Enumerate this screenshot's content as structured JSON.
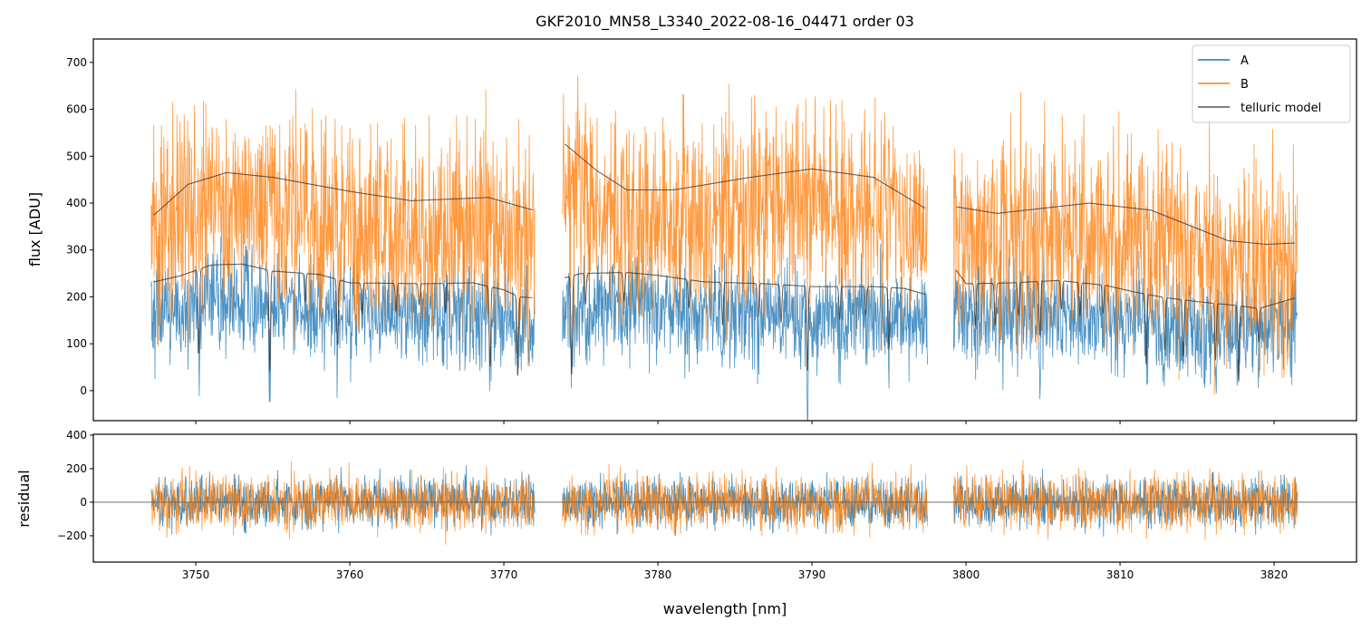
{
  "chart_data": [
    {
      "type": "line",
      "title": "GKF2010_MN58_L3340_2022-08-16_04471  order 03",
      "xlabel": "",
      "ylabel": "flux [ADU]",
      "xlim": [
        3743.35,
        3825.35
      ],
      "ylim": [
        -64,
        750
      ],
      "yticks": [
        0,
        100,
        200,
        300,
        400,
        500,
        600,
        700
      ],
      "xticks": [
        3750,
        3760,
        3770,
        3780,
        3790,
        3800,
        3810,
        3820
      ],
      "legend": {
        "placement": "top-right",
        "entries": [
          "A",
          "B",
          "telluric model"
        ]
      },
      "segments": [
        [
          3747.1,
          3772.0
        ],
        [
          3773.8,
          3797.5
        ],
        [
          3799.2,
          3821.5
        ]
      ],
      "series": [
        {
          "name": "A",
          "color": "#1f77b4",
          "description_level": "noisy spectrum, ~50-300 ADU"
        },
        {
          "name": "B",
          "color": "#ff7f0e",
          "description_level": "noisy spectrum, ~200-750 ADU"
        },
        {
          "name": "telluric model",
          "color": "#333333",
          "upper_curve": [
            [
              [
                3747.3,
                375
              ],
              [
                3749.5,
                440
              ],
              [
                3752,
                465
              ],
              [
                3755,
                455
              ],
              [
                3760,
                425
              ],
              [
                3764,
                405
              ],
              [
                3769,
                412
              ],
              [
                3771.9,
                385
              ]
            ],
            [
              [
                3774,
                525
              ],
              [
                3776,
                470
              ],
              [
                3778,
                428
              ],
              [
                3781,
                428
              ],
              [
                3786,
                455
              ],
              [
                3790,
                473
              ],
              [
                3794,
                455
              ],
              [
                3797.4,
                388
              ]
            ],
            [
              [
                3799.4,
                392
              ],
              [
                3802,
                378
              ],
              [
                3808,
                400
              ],
              [
                3812,
                385
              ],
              [
                3817,
                320
              ],
              [
                3819.5,
                312
              ],
              [
                3821.4,
                315
              ]
            ]
          ],
          "lower_curve": [
            [
              [
                3747.3,
                232
              ],
              [
                3749,
                245
              ],
              [
                3751,
                268
              ],
              [
                3753,
                270
              ],
              [
                3755,
                255
              ],
              [
                3758,
                248
              ],
              [
                3760,
                230
              ],
              [
                3765,
                228
              ],
              [
                3768,
                230
              ],
              [
                3770,
                215
              ],
              [
                3771,
                200
              ],
              [
                3771.9,
                198
              ]
            ],
            [
              [
                3773.9,
                240
              ],
              [
                3775,
                250
              ],
              [
                3778,
                252
              ],
              [
                3780,
                246
              ],
              [
                3783,
                232
              ],
              [
                3787,
                228
              ],
              [
                3790,
                222
              ],
              [
                3794,
                222
              ],
              [
                3796,
                218
              ],
              [
                3797.4,
                205
              ]
            ],
            [
              [
                3799.3,
                260
              ],
              [
                3800,
                228
              ],
              [
                3803,
                230
              ],
              [
                3806,
                235
              ],
              [
                3809,
                225
              ],
              [
                3811,
                210
              ],
              [
                3813,
                198
              ],
              [
                3815,
                190
              ],
              [
                3818,
                180
              ],
              [
                3819,
                175
              ],
              [
                3821.4,
                198
              ]
            ]
          ],
          "absorption_lines": [
            [
              3750.2,
              180
            ],
            [
              3754.8,
              215
            ],
            [
              3757.1,
              60
            ],
            [
              3759.2,
              140
            ],
            [
              3760.8,
              65
            ],
            [
              3763.0,
              60
            ],
            [
              3764.5,
              45
            ],
            [
              3766.2,
              60
            ],
            [
              3769.1,
              170
            ],
            [
              3770.9,
              170
            ],
            [
              3774.4,
              210
            ],
            [
              3775.3,
              65
            ],
            [
              3777.8,
              60
            ],
            [
              3782.0,
              60
            ],
            [
              3784.2,
              90
            ],
            [
              3786.5,
              70
            ],
            [
              3788.0,
              80
            ],
            [
              3789.7,
              180
            ],
            [
              3791.8,
              70
            ],
            [
              3793.5,
              60
            ],
            [
              3795.0,
              130
            ],
            [
              3800.6,
              90
            ],
            [
              3801.9,
              90
            ],
            [
              3803.4,
              70
            ],
            [
              3804.8,
              115
            ],
            [
              3806.2,
              60
            ],
            [
              3807.4,
              70
            ],
            [
              3808.9,
              60
            ],
            [
              3811.7,
              150
            ],
            [
              3812.9,
              110
            ],
            [
              3814.1,
              120
            ],
            [
              3816.2,
              120
            ],
            [
              3817.7,
              160
            ],
            [
              3819.0,
              70
            ]
          ]
        }
      ]
    },
    {
      "type": "line",
      "xlabel": "wavelength [nm]",
      "ylabel": "residual",
      "xlim": [
        3743.35,
        3825.35
      ],
      "ylim": [
        -357,
        405
      ],
      "yticks": [
        -200,
        0,
        200,
        400
      ],
      "xticks": [
        3750,
        3760,
        3770,
        3780,
        3790,
        3800,
        3810,
        3820
      ],
      "hline": 0,
      "series": [
        {
          "name": "A",
          "color": "#1f77b4"
        },
        {
          "name": "B",
          "color": "#ff7f0e"
        }
      ]
    }
  ]
}
